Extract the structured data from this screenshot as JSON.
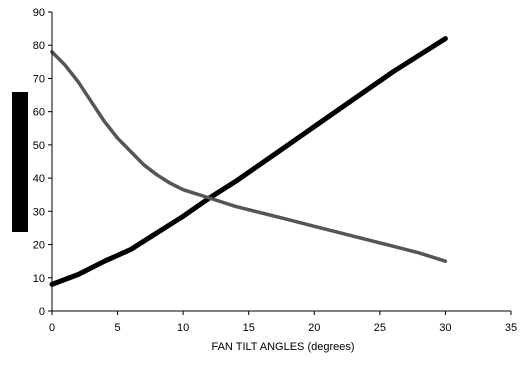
{
  "chart_data": {
    "type": "line",
    "xlabel": "FAN TILT ANGLES (degrees)",
    "ylabel": "",
    "xlim": [
      0,
      35
    ],
    "ylim": [
      0,
      90
    ],
    "x_ticks": [
      "0",
      "5",
      "10",
      "15",
      "20",
      "25",
      "30",
      "35"
    ],
    "y_ticks": [
      "0",
      "10",
      "20",
      "30",
      "40",
      "50",
      "60",
      "70",
      "80",
      "90"
    ],
    "grid": false,
    "series": [
      {
        "color": "#000000",
        "x": [
          0,
          2,
          4,
          6,
          8,
          10,
          12,
          14,
          16,
          18,
          20,
          22,
          24,
          26,
          28,
          30
        ],
        "y": [
          8,
          11,
          15,
          18.5,
          23.5,
          28.5,
          34,
          39,
          44.5,
          50,
          55.5,
          61,
          66.5,
          72,
          77,
          82
        ]
      },
      {
        "color": "#555555",
        "x": [
          0,
          1,
          2,
          3,
          4,
          5,
          6,
          7,
          8,
          9,
          10,
          12,
          14,
          16,
          18,
          20,
          22,
          24,
          26,
          28,
          30
        ],
        "y": [
          78,
          74,
          69,
          63,
          57,
          52,
          48,
          44,
          41,
          38.5,
          36.5,
          34,
          31.5,
          29.5,
          27.5,
          25.5,
          23.5,
          21.5,
          19.5,
          17.5,
          15
        ]
      }
    ]
  }
}
